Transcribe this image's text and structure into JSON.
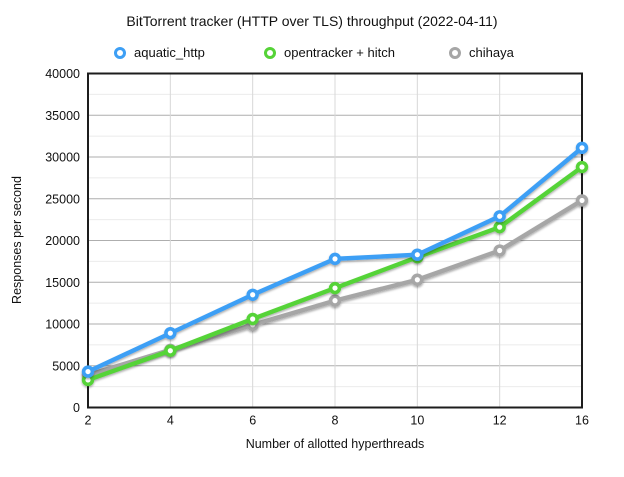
{
  "chart_data": {
    "type": "line",
    "title": "BitTorrent tracker (HTTP over TLS) throughput (2022-04-11)",
    "xlabel": "Number of allotted hyperthreads",
    "ylabel": "Responses per second",
    "x_categories": [
      "2",
      "4",
      "6",
      "8",
      "10",
      "12",
      "16"
    ],
    "ylim": [
      0,
      40000
    ],
    "y_major_tick_step": 5000,
    "y_minor_grid_step": 2500,
    "y_tick_labels": [
      "0",
      "5000",
      "10000",
      "15000",
      "20000",
      "25000",
      "30000",
      "35000",
      "40000"
    ],
    "grid": "on",
    "legend_position": "top",
    "series": [
      {
        "name": "aquatic_http",
        "color": "#3d9ff5",
        "values": [
          4300,
          8900,
          13500,
          17800,
          18300,
          22900,
          31100
        ]
      },
      {
        "name": "opentracker + hitch",
        "color": "#55d337",
        "values": [
          3300,
          6800,
          10600,
          14300,
          18000,
          21600,
          28800
        ]
      },
      {
        "name": "chihaya",
        "color": "#a6a6a6",
        "values": [
          3900,
          6900,
          9900,
          12800,
          15300,
          18800,
          24800
        ]
      }
    ],
    "colors": {
      "axis_border": "#1d1d1d",
      "major_gridline": "#aeaeae",
      "minor_gridline": "#ebebeb",
      "vertical_gridline": "#d8d8d8",
      "marker_fill": "#ffffff"
    }
  }
}
